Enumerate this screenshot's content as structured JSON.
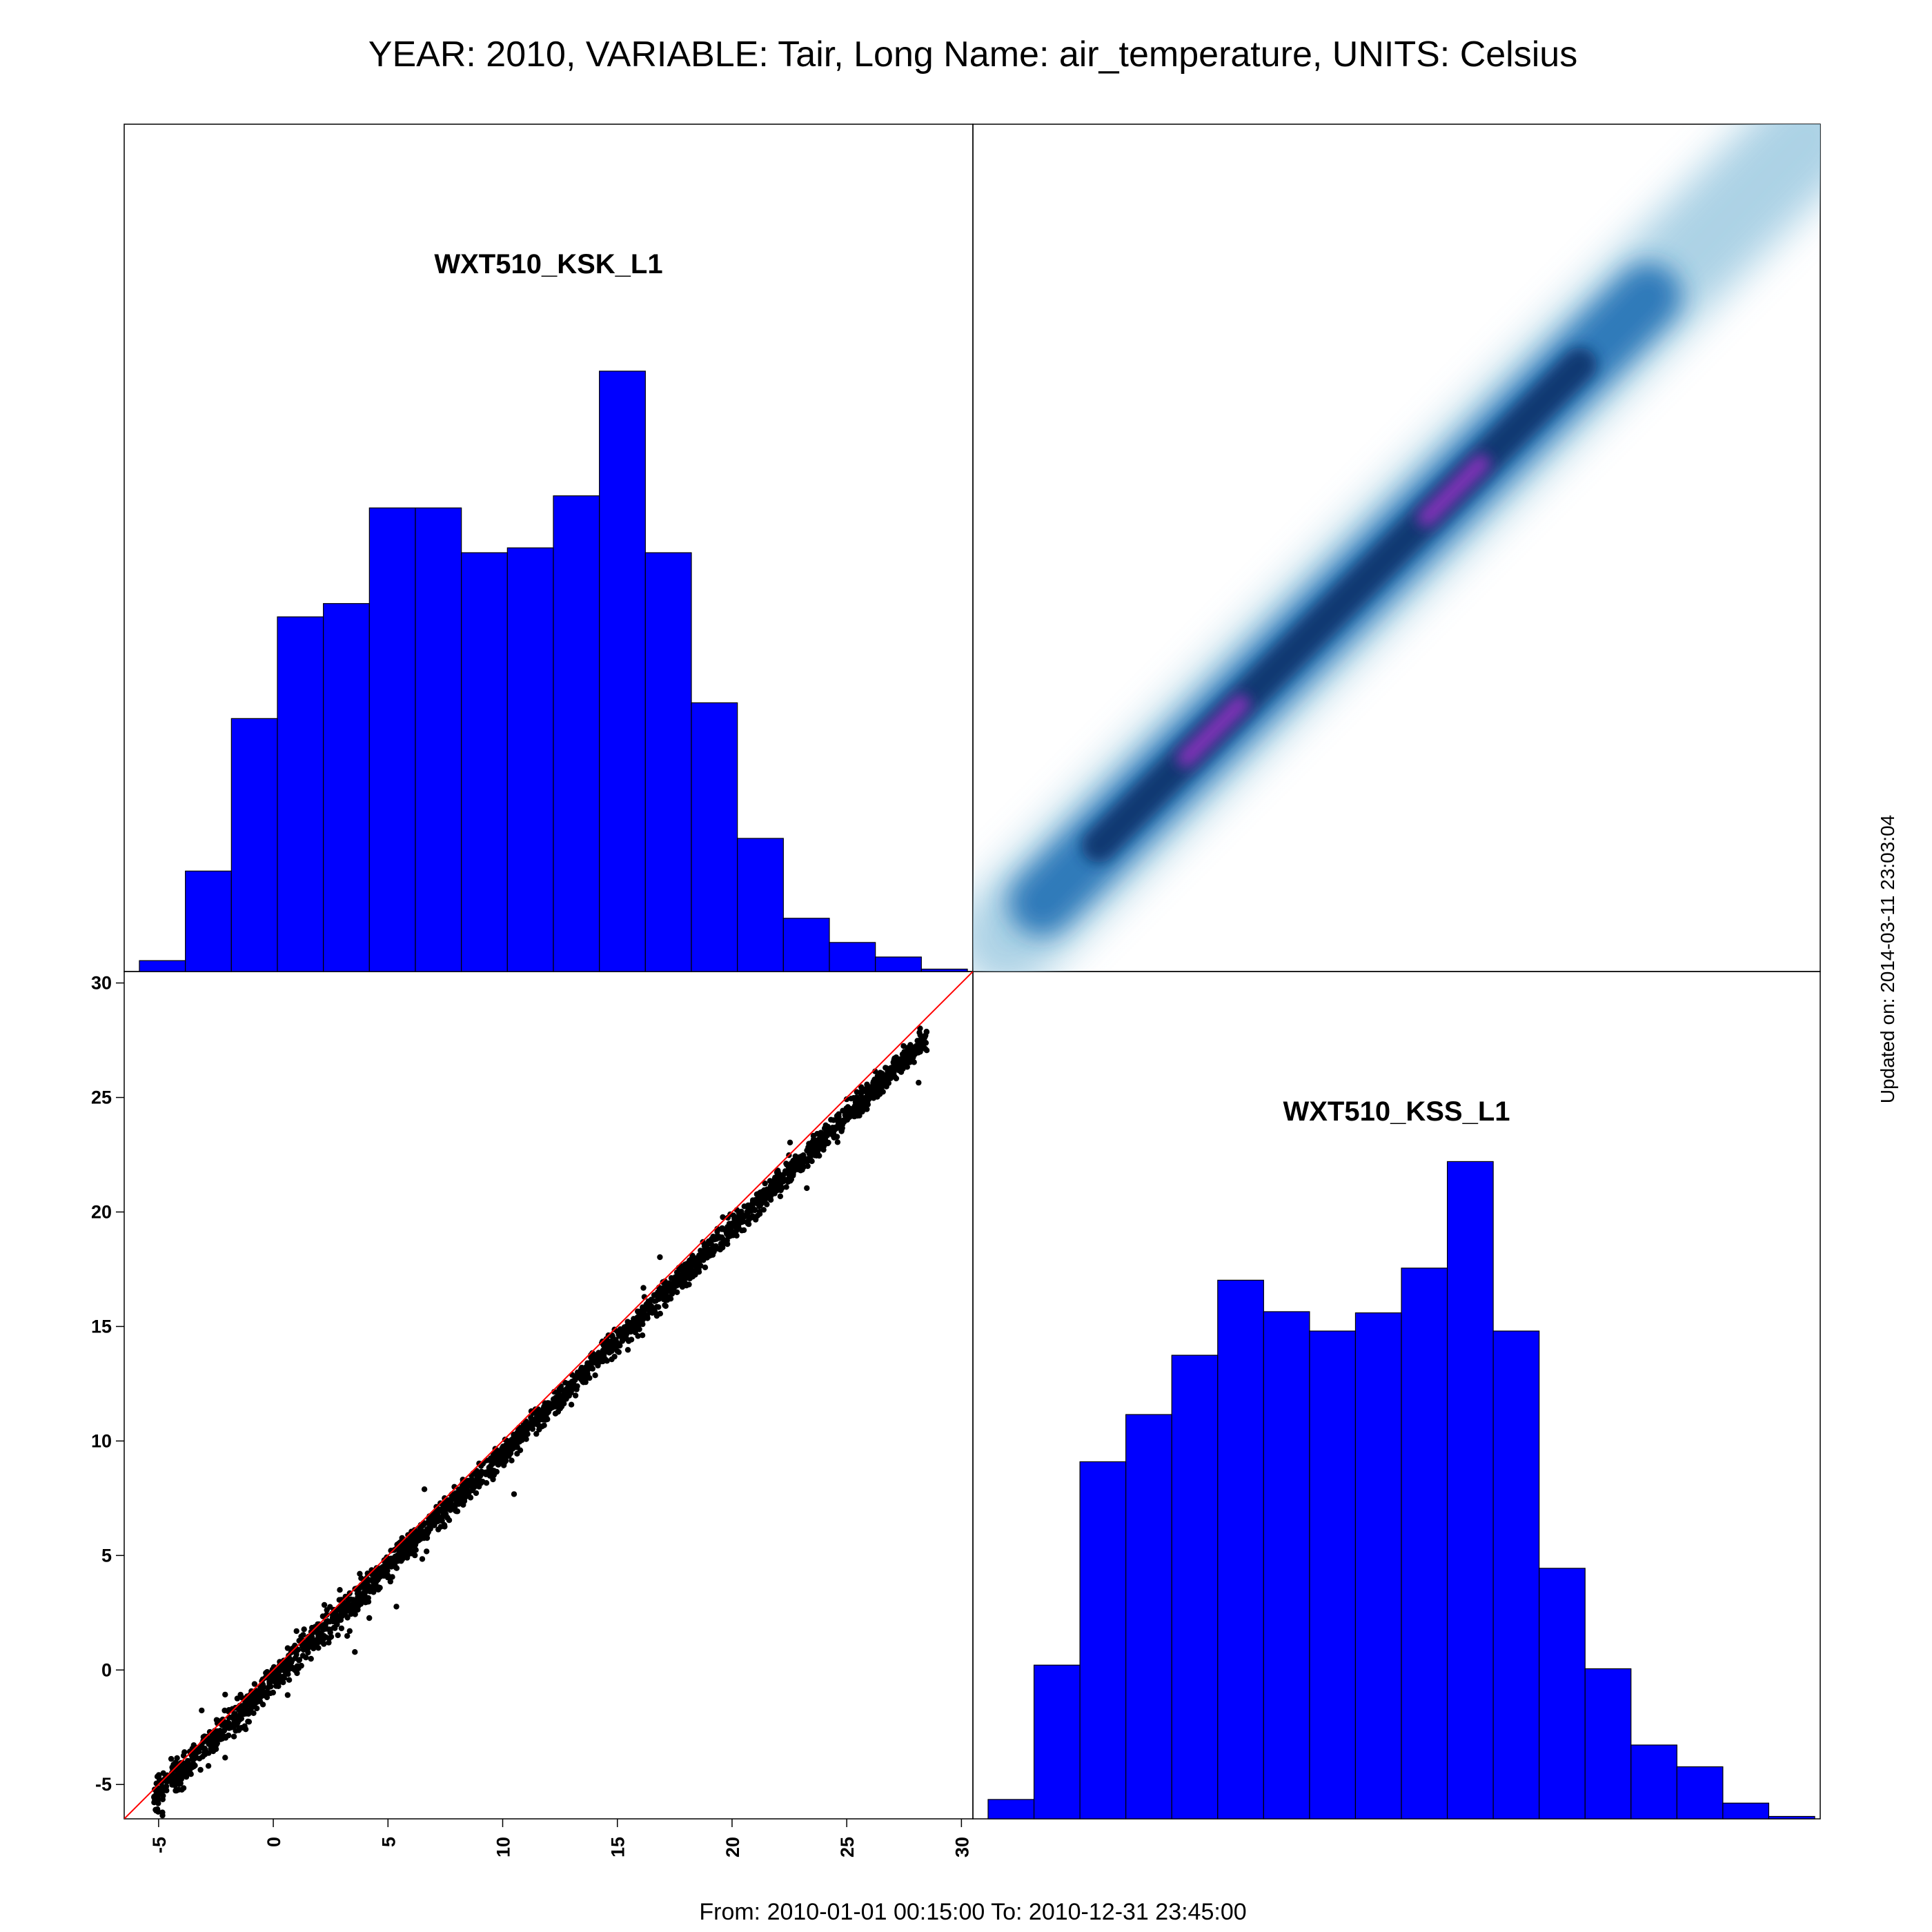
{
  "page": {
    "title": "YEAR: 2010, VARIABLE: Tair, Long Name: air_temperature, UNITS: Celsius",
    "footer": "From: 2010-01-01 00:15:00 To: 2010-12-31 23:45:00",
    "updated": "Updated on: 2014-03-11 23:03:04"
  },
  "colors": {
    "histogram_fill": "#0000ff",
    "scatter_points": "#000000",
    "reference_line": "#ff0000",
    "density_low": "#9ecae1",
    "density_mid": "#08306b",
    "density_peak": "#9b30c8",
    "frame": "#000000"
  },
  "chart_data": [
    {
      "type": "bar",
      "chart": "histogram",
      "title": "WXT510_KSK_L1",
      "bin_edges": [
        -6,
        -4,
        -2,
        0,
        2,
        4,
        6,
        8,
        10,
        12,
        14,
        16,
        18,
        20,
        22,
        24,
        26,
        28,
        30
      ],
      "values": [
        0.9,
        8.3,
        20.9,
        29.3,
        30.4,
        38.3,
        38.3,
        34.6,
        35.0,
        39.3,
        49.6,
        34.6,
        22.2,
        11.0,
        4.4,
        2.4,
        1.2,
        0.2
      ],
      "ylim": [
        0,
        70
      ],
      "grid": false
    },
    {
      "type": "heatmap",
      "chart": "smoothed-density",
      "xlim": [
        -6.5,
        30.5
      ],
      "ylim": [
        -6.5,
        30.5
      ],
      "ridge": [
        [
          -5,
          -5
        ],
        [
          30,
          30
        ]
      ],
      "peaks": [
        [
          4,
          4
        ],
        [
          14.5,
          14.5
        ]
      ],
      "grid": false
    },
    {
      "type": "scatter",
      "chart": "scatter",
      "xlim": [
        -6.5,
        30.5
      ],
      "ylim": [
        -6.5,
        30.5
      ],
      "x_ticks": [
        -5,
        0,
        5,
        10,
        15,
        20,
        25,
        30
      ],
      "y_ticks": [
        -5,
        0,
        5,
        10,
        15,
        20,
        25,
        30
      ],
      "x_range": [
        -5.2,
        28.5
      ],
      "y_relation": "y ≈ 0.985·x − 0.4",
      "reference_line": [
        [
          -6.5,
          -6.5
        ],
        [
          30.5,
          30.5
        ]
      ],
      "grid": false
    },
    {
      "type": "bar",
      "chart": "histogram",
      "title": "WXT510_KSS_L1",
      "bin_edges": [
        -6,
        -4,
        -2,
        0,
        2,
        4,
        6,
        8,
        10,
        12,
        14,
        16,
        18,
        20,
        22,
        24,
        26,
        28,
        30
      ],
      "values": [
        1.6,
        12.7,
        29.5,
        33.4,
        38.3,
        44.5,
        41.9,
        40.3,
        41.8,
        45.5,
        54.3,
        40.3,
        20.7,
        12.4,
        6.1,
        4.3,
        1.3,
        0.2
      ],
      "ylim": [
        0,
        70
      ],
      "grid": false
    }
  ]
}
